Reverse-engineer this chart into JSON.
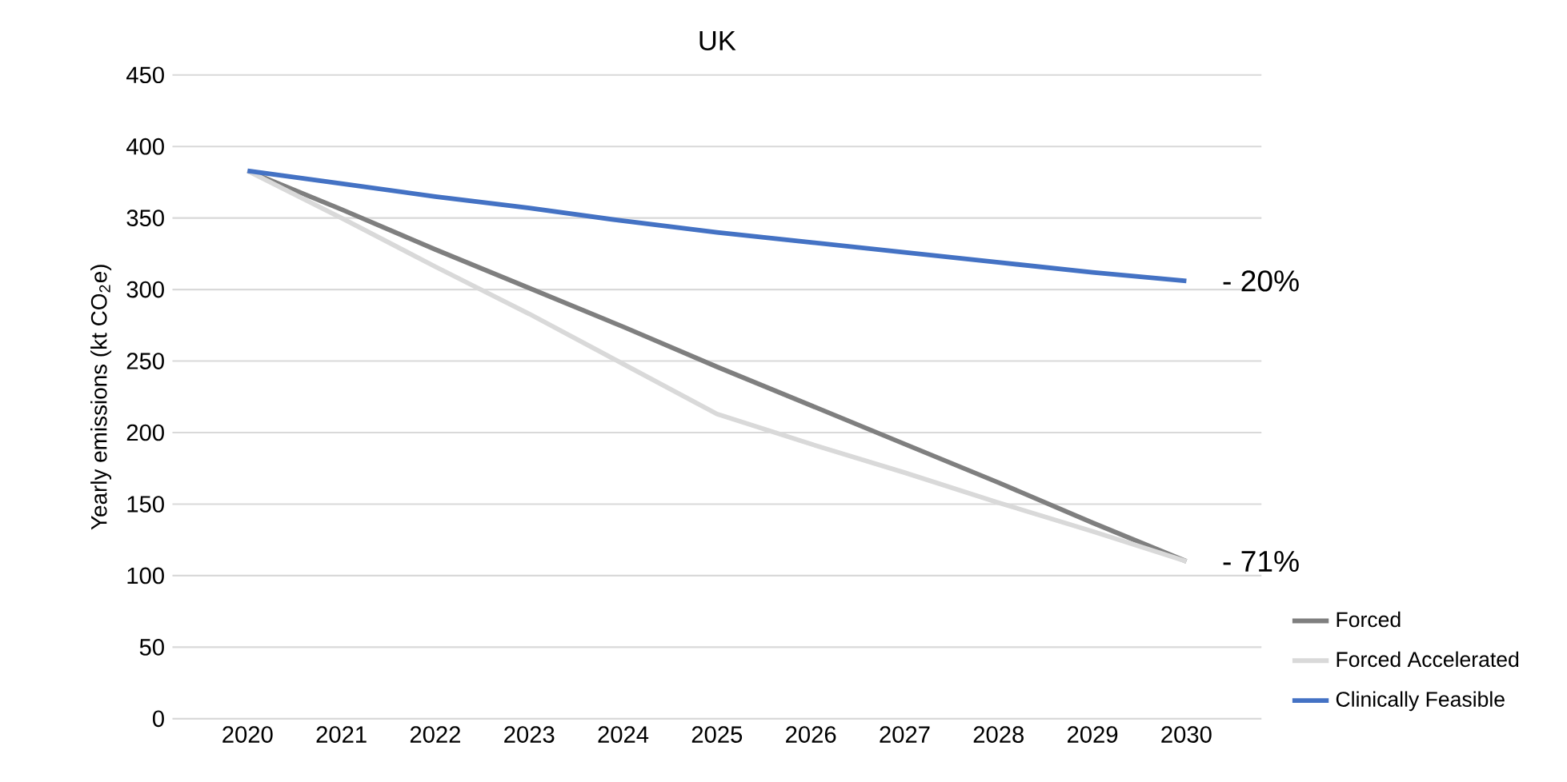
{
  "chart_data": {
    "type": "line",
    "title": "UK",
    "ylabel": "Yearly  emissions (kt CO$_{2}$e)",
    "categories": [
      "2020",
      "2021",
      "2022",
      "2023",
      "2024",
      "2025",
      "2026",
      "2027",
      "2028",
      "2029",
      "2030"
    ],
    "series": [
      {
        "name": "Forced",
        "color": "#7f7f7f",
        "values": [
          383,
          356,
          328,
          301,
          274,
          246,
          219,
          192,
          165,
          137,
          110
        ]
      },
      {
        "name": "Forced Accelerated",
        "color": "#d9d9d9",
        "values": [
          383,
          350,
          316,
          283,
          248,
          213,
          192,
          172,
          151,
          131,
          110
        ]
      },
      {
        "name": "Clinically Feasible",
        "color": "#4472c4",
        "values": [
          383,
          374,
          365,
          357,
          348,
          340,
          333,
          326,
          319,
          312,
          306
        ]
      }
    ],
    "ylim": [
      0,
      450
    ],
    "yticks": [
      0,
      50,
      100,
      150,
      200,
      250,
      300,
      350,
      400,
      450
    ],
    "grid": "y",
    "legend": "bottom right",
    "marker": "none",
    "line_style": "solid",
    "annotations": [
      {
        "text": "- 20%",
        "x": "2030",
        "y": 306
      },
      {
        "text": "- 71%",
        "x": "2030",
        "y": 110
      }
    ]
  }
}
